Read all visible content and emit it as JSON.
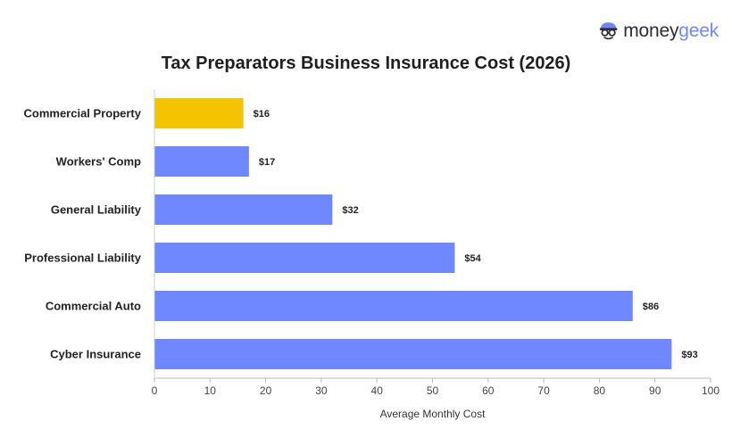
{
  "brand": {
    "logo_part1": "money",
    "logo_part2": "geek",
    "accent": "#6f86ff"
  },
  "chart_data": {
    "type": "bar",
    "orientation": "horizontal",
    "title": "Tax Preparators Business Insurance Cost (2026)",
    "xlabel": "Average Monthly Cost",
    "ylabel": "",
    "xlim": [
      0,
      100
    ],
    "ticks": [
      "0",
      "10",
      "20",
      "30",
      "40",
      "50",
      "60",
      "70",
      "80",
      "90",
      "100"
    ],
    "grid": false,
    "categories": [
      "Commercial Property",
      "Workers' Comp",
      "General Liability",
      "Professional Liability",
      "Commercial Auto",
      "Cyber Insurance"
    ],
    "values": [
      16,
      17,
      32,
      54,
      86,
      93
    ],
    "value_labels": [
      "$16",
      "$17",
      "$32",
      "$54",
      "$86",
      "$93"
    ],
    "colors": [
      "#f5c400",
      "#7088ff",
      "#7088ff",
      "#7088ff",
      "#7088ff",
      "#7088ff"
    ]
  }
}
